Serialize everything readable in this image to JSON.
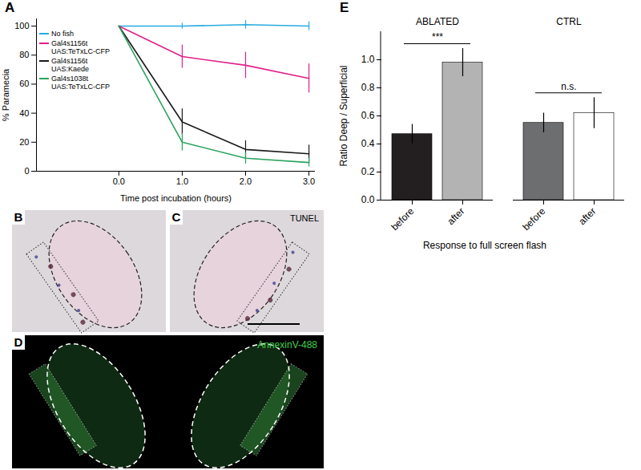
{
  "chart_data": [
    {
      "panel_label": "A",
      "type": "line",
      "x_label": "Time post incubation (hours)",
      "y_label": "% Paramecia",
      "x": [
        0,
        1,
        2,
        3
      ],
      "xlim": [
        -1.3,
        3.1
      ],
      "xticks": [
        0,
        1,
        2,
        3
      ],
      "ylim": [
        0,
        105
      ],
      "yticks": [
        0,
        20,
        40,
        60,
        80,
        100
      ],
      "legend": "top-left",
      "series": [
        {
          "name": "No fish",
          "color": "#29abe2",
          "values": [
            100,
            100,
            101,
            100
          ],
          "errors": [
            0,
            2,
            3,
            3
          ]
        },
        {
          "name": "Gal4s1156t\nUAS:TeTxLC-CFP",
          "color": "#e0218a",
          "values": [
            100,
            79,
            73,
            64
          ],
          "errors": [
            0,
            8,
            9,
            10
          ]
        },
        {
          "name": "Gal4s1156t\nUAS:Kaede",
          "color": "#1a1a1a",
          "values": [
            100,
            34,
            15,
            12
          ],
          "errors": [
            0,
            9,
            6,
            6
          ]
        },
        {
          "name": "Gal4s1038t\nUAS:TeTxLC-CFP",
          "color": "#2ca25f",
          "values": [
            100,
            20,
            9,
            6
          ],
          "errors": [
            0,
            6,
            4,
            3
          ]
        }
      ]
    },
    {
      "panel_label": "E",
      "type": "bar",
      "y_label": "Ratio Deep / Superficial",
      "x_label": "Response to full screen flash",
      "categories": [
        "before",
        "after",
        "before",
        "after"
      ],
      "groups": [
        "ABLATED",
        "ABLATED",
        "CTRL",
        "CTRL"
      ],
      "group_annotations": [
        {
          "group": "ABLATED",
          "text": "***"
        },
        {
          "group": "CTRL",
          "text": "n.s."
        }
      ],
      "values": [
        0.47,
        0.98,
        0.55,
        0.62
      ],
      "errors": [
        0.07,
        0.1,
        0.07,
        0.11
      ],
      "colors": [
        "#231f20",
        "#b3b3b3",
        "#6d6e70",
        "#ffffff"
      ],
      "ylim": [
        0,
        1.2
      ],
      "yticks": [
        0,
        0.2,
        0.4,
        0.6,
        0.8,
        1
      ]
    }
  ],
  "images": [
    {
      "panel_label": "B"
    },
    {
      "panel_label": "C",
      "label": "TUNEL"
    },
    {
      "panel_label": "D",
      "label": "AnnexinV-488"
    }
  ]
}
